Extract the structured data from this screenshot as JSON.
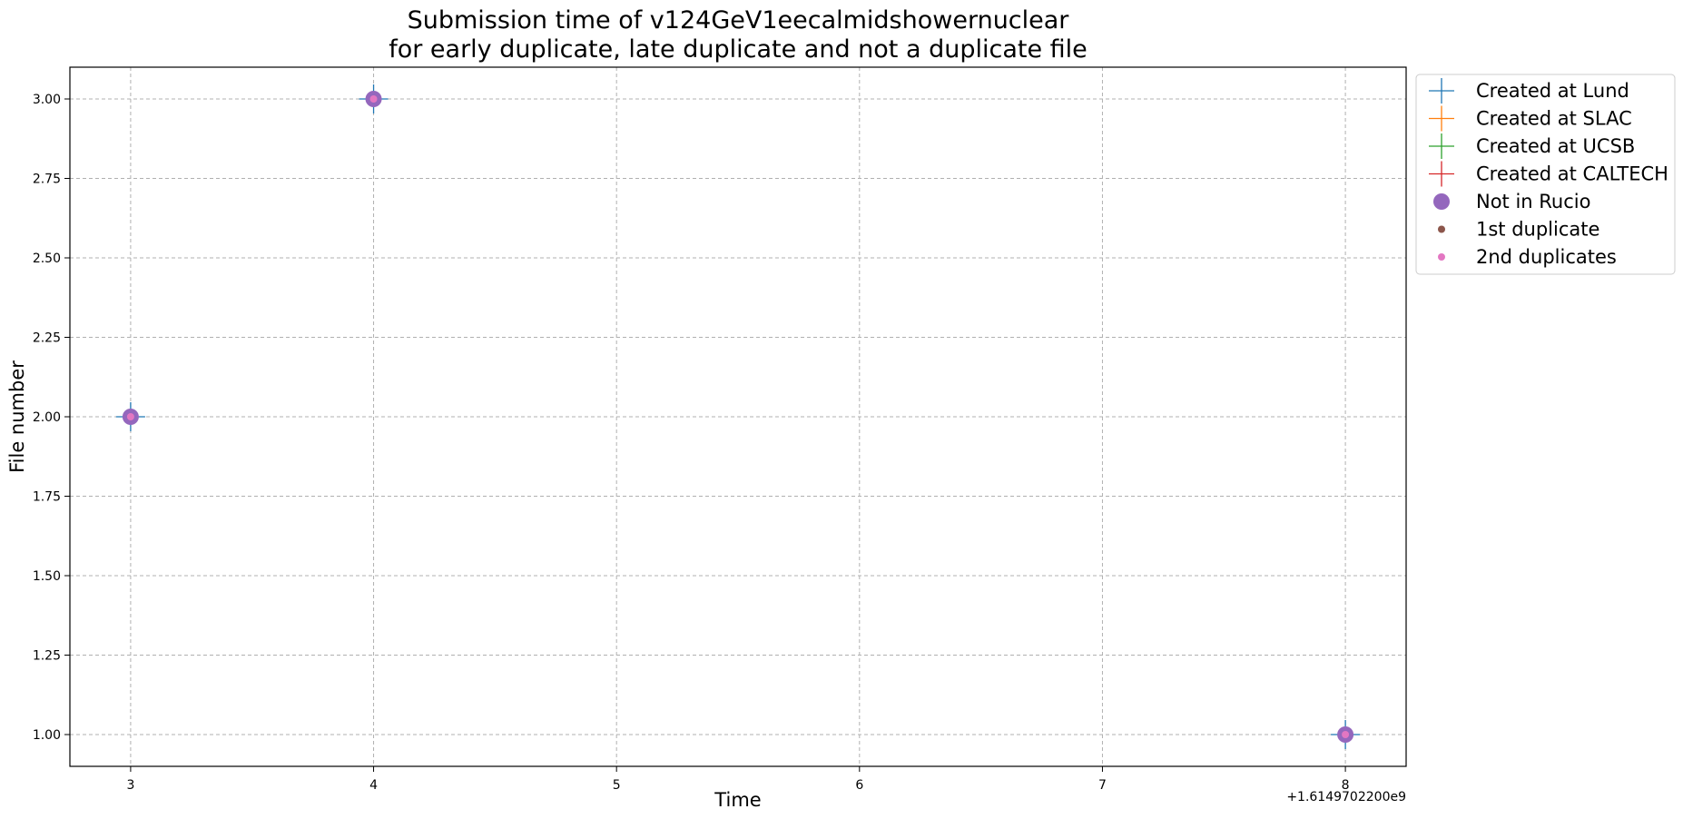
{
  "chart_data": {
    "type": "scatter",
    "title_lines": [
      "Submission time of v124GeV1eecalmidshowernuclear",
      "for early duplicate, late duplicate and not a duplicate file"
    ],
    "xlabel": "Time",
    "ylabel": "File number",
    "x_offset_label": "+1.6149702200e9",
    "xlim": [
      2.75,
      8.25
    ],
    "ylim": [
      0.9,
      3.1
    ],
    "x_ticks": [
      "3",
      "4",
      "5",
      "6",
      "7",
      "8"
    ],
    "x_tick_values": [
      3,
      4,
      5,
      6,
      7,
      8
    ],
    "y_ticks": [
      "1.00",
      "1.25",
      "1.50",
      "1.75",
      "2.00",
      "2.25",
      "2.50",
      "2.75",
      "3.00"
    ],
    "y_tick_values": [
      1.0,
      1.25,
      1.5,
      1.75,
      2.0,
      2.25,
      2.5,
      2.75,
      3.0
    ],
    "grid": true,
    "legend_position": "outside-top-right",
    "series": [
      {
        "name": "Created at Lund",
        "marker": "plus",
        "color": "#1f77b4",
        "points": [
          [
            3,
            2
          ],
          [
            4,
            3
          ],
          [
            8,
            1
          ]
        ]
      },
      {
        "name": "Created at SLAC",
        "marker": "plus",
        "color": "#ff7f0e",
        "points": []
      },
      {
        "name": "Created at UCSB",
        "marker": "plus",
        "color": "#2ca02c",
        "points": []
      },
      {
        "name": "Created at CALTECH",
        "marker": "plus",
        "color": "#d62728",
        "points": []
      },
      {
        "name": "Not in Rucio",
        "marker": "circle-large",
        "color": "#9467bd",
        "points": [
          [
            3,
            2
          ],
          [
            4,
            3
          ],
          [
            8,
            1
          ]
        ]
      },
      {
        "name": "1st duplicate",
        "marker": "circle-small",
        "color": "#8c564b",
        "points": []
      },
      {
        "name": "2nd duplicates",
        "marker": "circle-small",
        "color": "#e377c2",
        "points": [
          [
            3,
            2
          ],
          [
            4,
            3
          ],
          [
            8,
            1
          ]
        ]
      }
    ]
  }
}
